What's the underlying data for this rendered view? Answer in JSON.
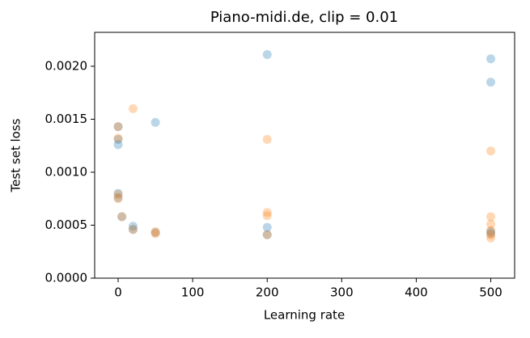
{
  "chart_data": {
    "type": "scatter",
    "title": "Piano-midi.de, clip = 0.01",
    "x_label": "Learning rate",
    "y_label": "Test set loss",
    "xlim": [
      -31.5,
      532
    ],
    "ylim": [
      0,
      0.00232
    ],
    "xticks": [
      0,
      100,
      200,
      300,
      400,
      500
    ],
    "yticks": [
      {
        "value": 0,
        "label": "0.0000"
      },
      {
        "value": 0.0005,
        "label": "0.0005"
      },
      {
        "value": 0.001,
        "label": "0.0010"
      },
      {
        "value": 0.0015,
        "label": "0.0015"
      },
      {
        "value": 0.002,
        "label": "0.0020"
      }
    ],
    "grid": false,
    "marker_opacity": 0.3,
    "series": [
      {
        "color": "#1f77b4",
        "x": [
          200,
          500,
          500,
          50,
          0,
          0,
          0,
          0,
          0,
          5,
          20,
          20,
          50,
          200,
          200,
          500,
          500
        ],
        "values": [
          0.00211,
          0.00207,
          0.00185,
          0.00147,
          0.00143,
          0.00131,
          0.00126,
          0.0008,
          0.00076,
          0.00058,
          0.00049,
          0.00046,
          0.00043,
          0.00048,
          0.00041,
          0.00044,
          0.00042
        ]
      },
      {
        "color": "#ff7f0e",
        "x": [
          20,
          200,
          500,
          0,
          0,
          0,
          0,
          5,
          20,
          50,
          50,
          200,
          200,
          200,
          500,
          500,
          500,
          500,
          500
        ],
        "values": [
          0.0016,
          0.00131,
          0.0012,
          0.00143,
          0.00132,
          0.00079,
          0.00075,
          0.00058,
          0.00046,
          0.00044,
          0.00042,
          0.00062,
          0.00059,
          0.00041,
          0.00058,
          0.00051,
          0.00045,
          0.00041,
          0.00038
        ]
      }
    ]
  }
}
